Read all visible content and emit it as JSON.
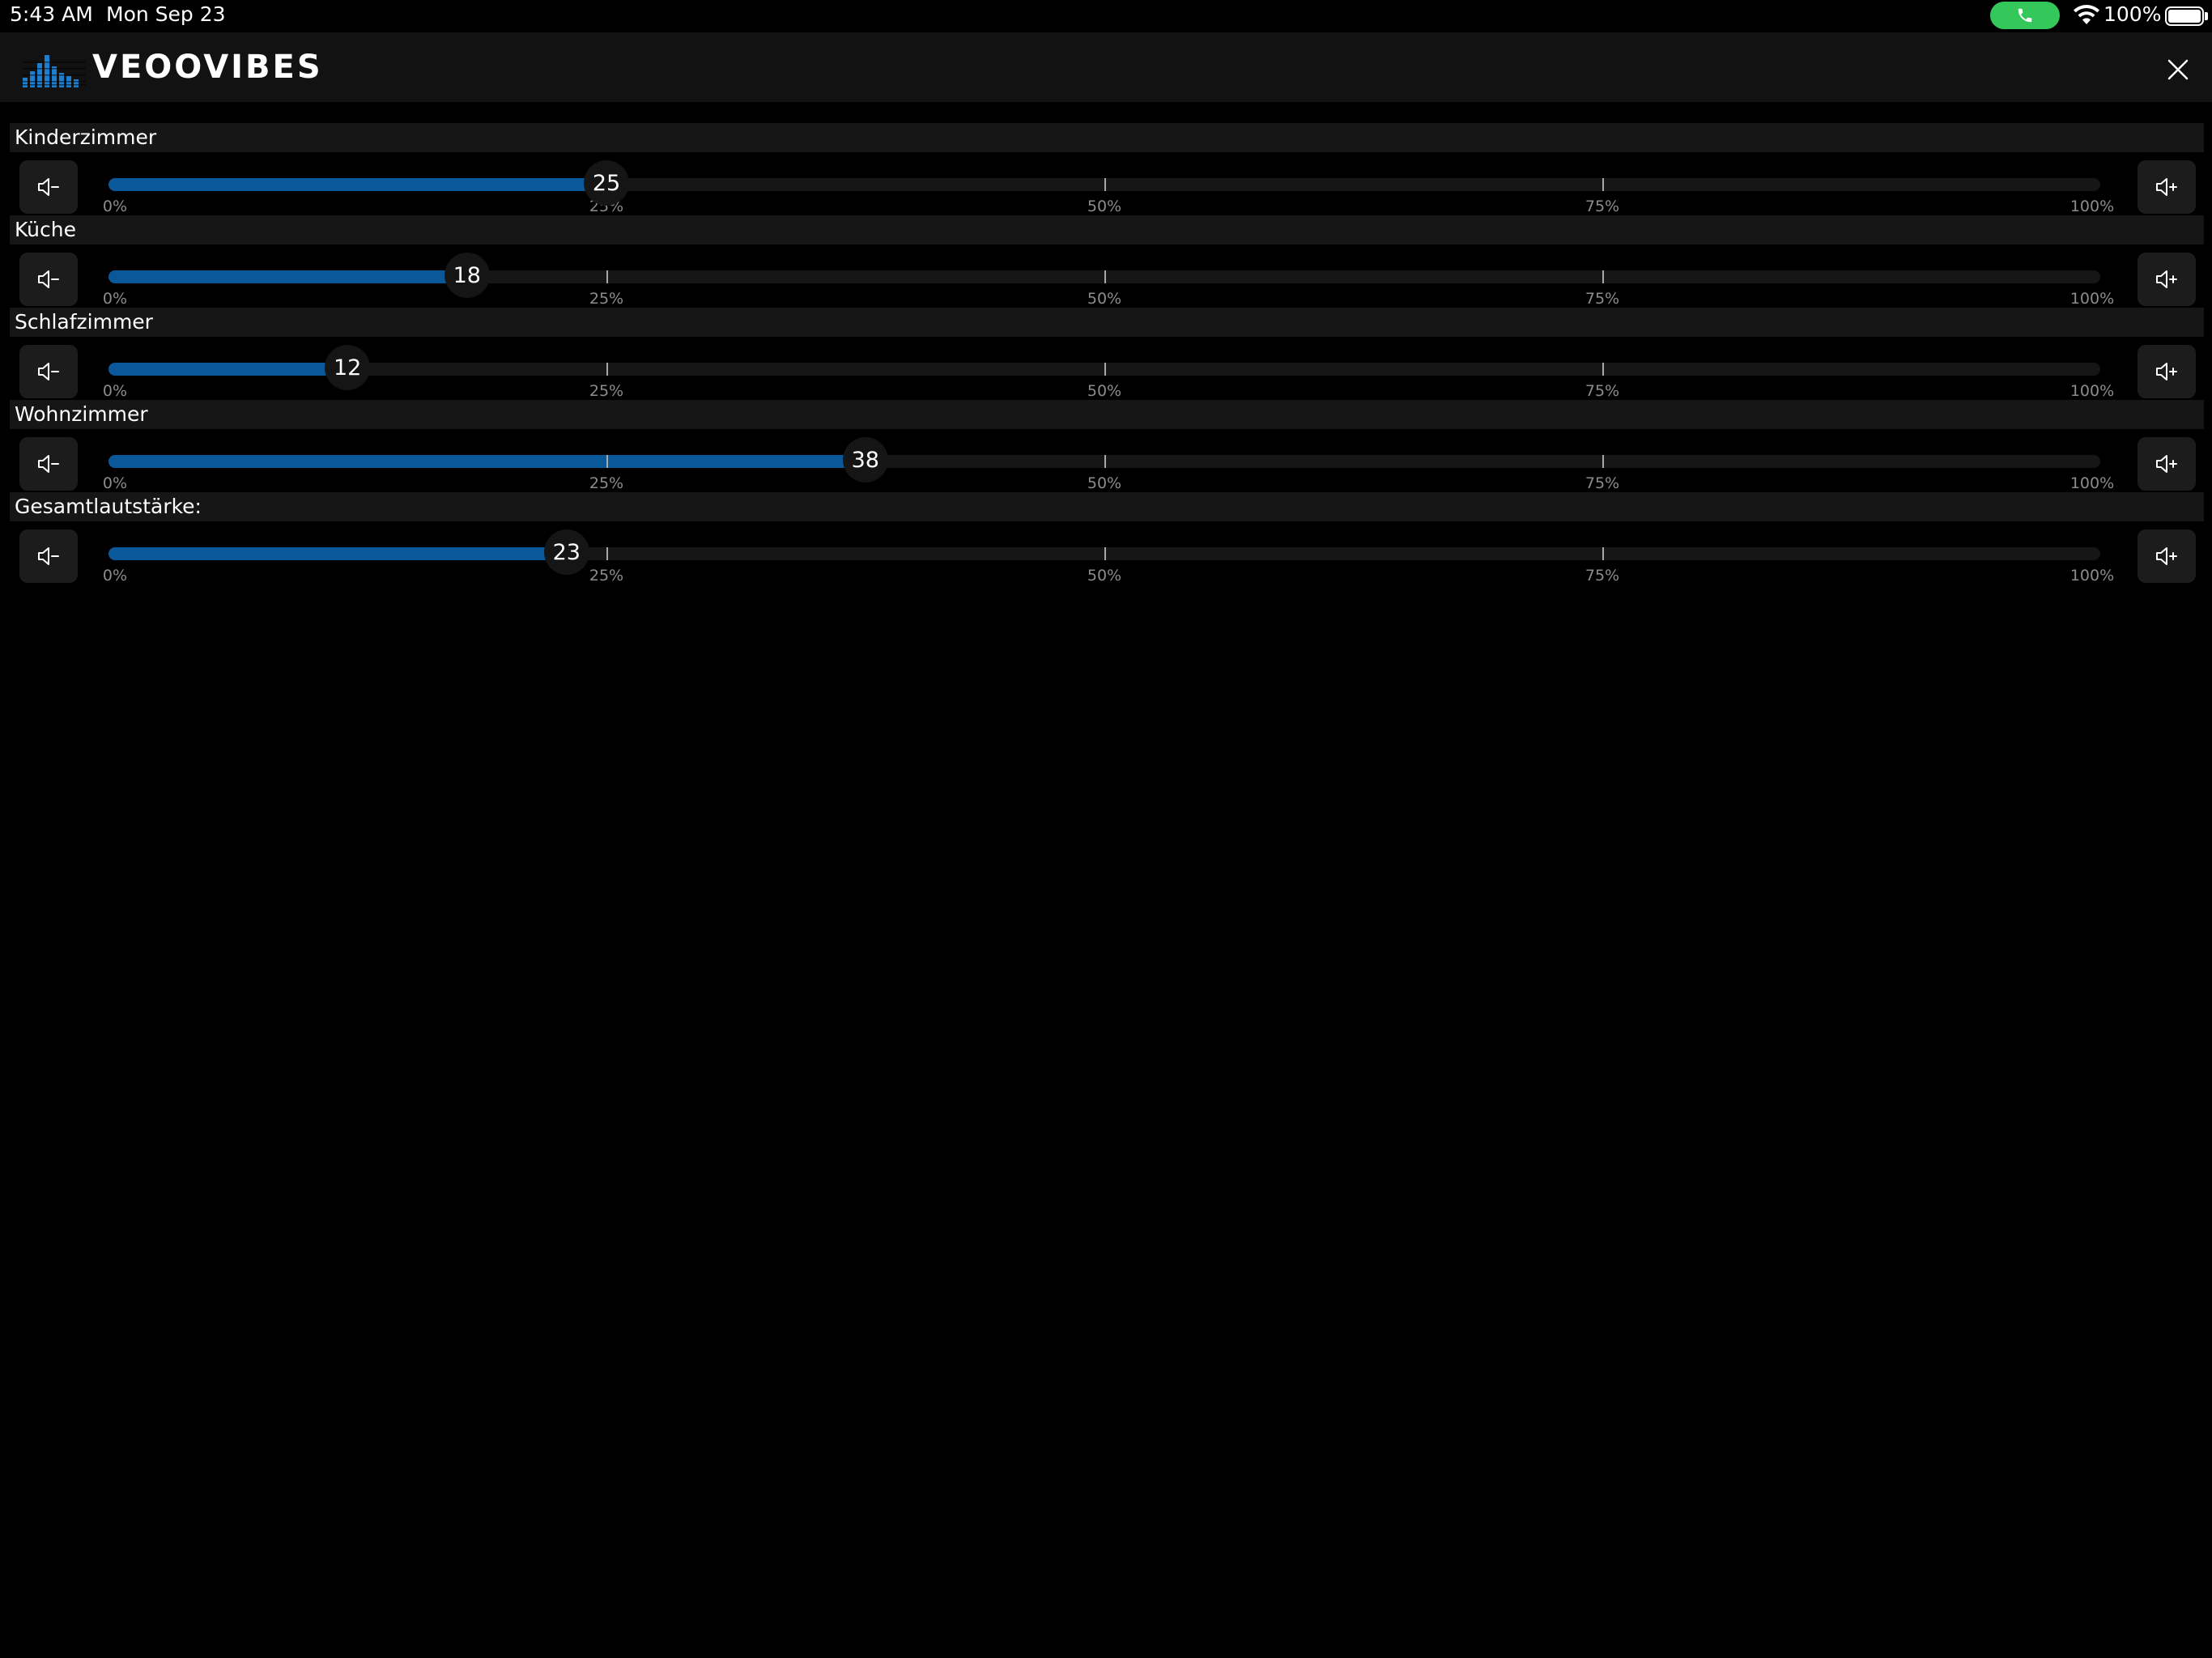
{
  "status_bar": {
    "time": "5:43 AM",
    "date": "Mon Sep 23",
    "battery": "100%",
    "call_indicator_color": "#34c759"
  },
  "header": {
    "logo_text": "VEOOVIBES",
    "logo_icon": "equalizer-bars-icon",
    "close_icon": "close-icon"
  },
  "colors": {
    "accent": "#0b5899",
    "background": "#000000",
    "header_bg": "#121212"
  },
  "scale_labels": [
    "0%",
    "25%",
    "50%",
    "75%",
    "100%"
  ],
  "zones": [
    {
      "name": "Kinderzimmer",
      "volume": 25,
      "volume_text": "25"
    },
    {
      "name": "Küche",
      "volume": 18,
      "volume_text": "18"
    },
    {
      "name": "Schlafzimmer",
      "volume": 12,
      "volume_text": "12"
    },
    {
      "name": "Wohnzimmer",
      "volume": 38,
      "volume_text": "38"
    },
    {
      "name": "Gesamtlautstärke:",
      "volume": 23,
      "volume_text": "23"
    }
  ]
}
